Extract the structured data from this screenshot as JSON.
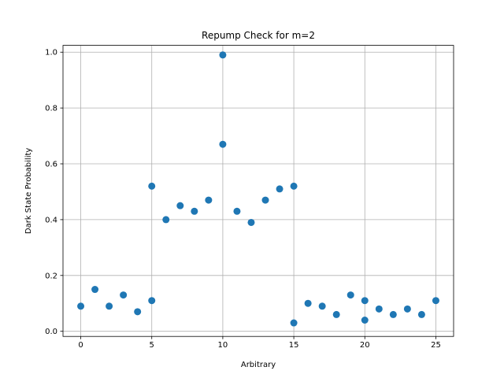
{
  "chart_data": {
    "type": "scatter",
    "title": "Repump Check for m=2",
    "xlabel": "Arbitrary",
    "ylabel": "Dark State Probability",
    "xlim": [
      -1.25,
      26.25
    ],
    "ylim": [
      -0.0184,
      1.0244
    ],
    "x_ticks": [
      0,
      5,
      10,
      15,
      20,
      25
    ],
    "x_tick_labels": [
      "0",
      "5",
      "10",
      "15",
      "20",
      "25"
    ],
    "y_ticks": [
      0.0,
      0.2,
      0.4,
      0.6,
      0.8,
      1.0
    ],
    "y_tick_labels": [
      "0.0",
      "0.2",
      "0.4",
      "0.6",
      "0.8",
      "1.0"
    ],
    "grid": true,
    "marker_color": "#1f77b4",
    "series": [
      {
        "x": [
          0,
          1,
          2,
          3,
          4,
          5,
          5,
          6,
          7,
          8,
          9,
          10,
          10,
          11,
          12,
          13,
          14,
          15,
          15,
          16,
          17,
          18,
          19,
          20,
          20,
          21,
          22,
          23,
          24,
          25
        ],
        "y": [
          0.09,
          0.15,
          0.09,
          0.13,
          0.07,
          0.11,
          0.52,
          0.4,
          0.45,
          0.43,
          0.47,
          0.99,
          0.67,
          0.43,
          0.39,
          0.47,
          0.51,
          0.52,
          0.03,
          0.1,
          0.09,
          0.06,
          0.13,
          0.11,
          0.04,
          0.08,
          0.06,
          0.08,
          0.06,
          0.11
        ]
      }
    ]
  }
}
